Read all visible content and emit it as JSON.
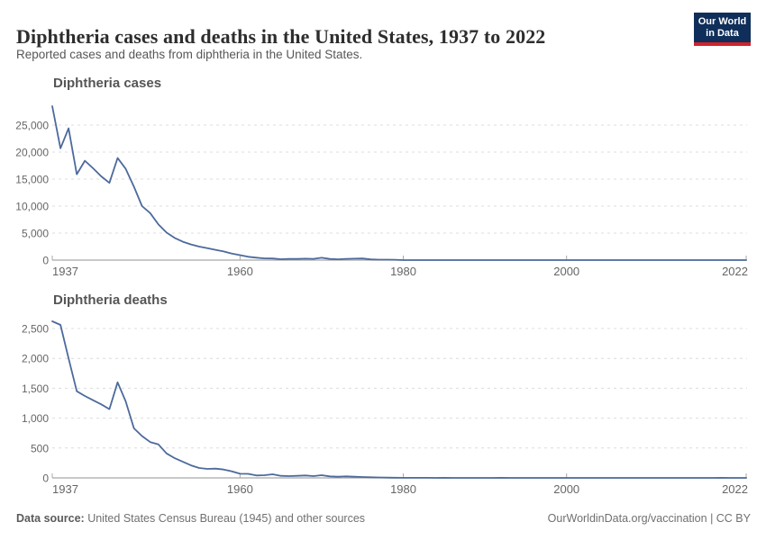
{
  "header": {
    "title": "Diphtheria cases and deaths in the United States, 1937 to 2022",
    "subtitle": "Reported cases and deaths from diphtheria in the United States.",
    "logo": {
      "line1": "Our World",
      "line2": "in Data",
      "bg_color": "#0f2e5a",
      "accent_color": "#d0232a"
    }
  },
  "footer": {
    "source_label": "Data source:",
    "source_text": " United States Census Bureau (1945) and other sources",
    "credit": "OurWorldinData.org/vaccination | CC BY"
  },
  "colors": {
    "line": "#4C6A9C",
    "gridline": "#dcdcdc",
    "axis": "#a8a8a8",
    "tick_label": "#666666"
  },
  "chart_data": [
    {
      "type": "line",
      "title": "Diphtheria cases",
      "xlabel": "",
      "ylabel": "",
      "xlim": [
        1937,
        2022
      ],
      "ylim": [
        0,
        29500
      ],
      "yticks": [
        0,
        5000,
        10000,
        15000,
        20000,
        25000
      ],
      "ytick_labels": [
        "0",
        "5,000",
        "10,000",
        "15,000",
        "20,000",
        "25,000"
      ],
      "xticks": [
        1937,
        1960,
        1980,
        2000,
        2022
      ],
      "xtick_labels": [
        "1937",
        "1960",
        "1980",
        "2000",
        "2022"
      ],
      "grid": "horizontal-dashed",
      "legend": "none",
      "x": [
        1937,
        1938,
        1939,
        1940,
        1941,
        1942,
        1943,
        1944,
        1945,
        1946,
        1947,
        1948,
        1949,
        1950,
        1951,
        1952,
        1953,
        1954,
        1955,
        1956,
        1957,
        1958,
        1959,
        1960,
        1961,
        1962,
        1963,
        1964,
        1965,
        1966,
        1967,
        1968,
        1969,
        1970,
        1971,
        1972,
        1973,
        1974,
        1975,
        1976,
        1977,
        1978,
        1979,
        1980,
        1981,
        1982,
        1983,
        1984,
        1985,
        1986,
        1987,
        1988,
        1989,
        1990,
        1991,
        1992,
        1993,
        1994,
        1995,
        1996,
        1997,
        1998,
        1999,
        2000,
        2001,
        2002,
        2003,
        2004,
        2005,
        2006,
        2007,
        2008,
        2009,
        2010,
        2011,
        2012,
        2013,
        2014,
        2015,
        2016,
        2017,
        2018,
        2019,
        2020,
        2021,
        2022
      ],
      "values": [
        28500,
        20700,
        24400,
        15900,
        18400,
        17000,
        15500,
        14300,
        18900,
        16900,
        13600,
        10000,
        8700,
        6600,
        5100,
        4100,
        3400,
        2900,
        2500,
        2200,
        1900,
        1600,
        1200,
        918,
        617,
        444,
        314,
        293,
        164,
        209,
        219,
        260,
        241,
        435,
        215,
        152,
        228,
        272,
        307,
        128,
        84,
        76,
        59,
        3,
        5,
        2,
        5,
        1,
        3,
        0,
        3,
        2,
        3,
        4,
        2,
        4,
        0,
        2,
        0,
        2,
        4,
        1,
        1,
        1,
        2,
        1,
        1,
        0,
        0,
        0,
        0,
        0,
        0,
        0,
        0,
        1,
        0,
        1,
        0,
        0,
        0,
        1,
        2,
        1,
        0,
        1
      ]
    },
    {
      "type": "line",
      "title": "Diphtheria deaths",
      "xlabel": "",
      "ylabel": "",
      "xlim": [
        1937,
        2022
      ],
      "ylim": [
        0,
        2750
      ],
      "yticks": [
        0,
        500,
        1000,
        1500,
        2000,
        2500
      ],
      "ytick_labels": [
        "0",
        "500",
        "1,000",
        "1,500",
        "2,000",
        "2,500"
      ],
      "xticks": [
        1937,
        1960,
        1980,
        2000,
        2022
      ],
      "xtick_labels": [
        "1937",
        "1960",
        "1980",
        "2000",
        "2022"
      ],
      "grid": "horizontal-dashed",
      "legend": "none",
      "x": [
        1937,
        1938,
        1939,
        1940,
        1941,
        1942,
        1943,
        1944,
        1945,
        1946,
        1947,
        1948,
        1949,
        1950,
        1951,
        1952,
        1953,
        1954,
        1955,
        1956,
        1957,
        1958,
        1959,
        1960,
        1961,
        1962,
        1963,
        1964,
        1965,
        1966,
        1967,
        1968,
        1969,
        1970,
        1971,
        1972,
        1973,
        1974,
        1975,
        1976,
        1977,
        1978,
        1979,
        1980,
        1981,
        1982,
        1983,
        1984,
        1985,
        1986,
        1987,
        1988,
        1989,
        1990,
        1991,
        1992,
        1993,
        1994,
        1995,
        1996,
        1997,
        1998,
        1999,
        2000,
        2001,
        2002,
        2003,
        2004,
        2005,
        2006,
        2007,
        2008,
        2009,
        2010,
        2011,
        2012,
        2013,
        2014,
        2015,
        2016,
        2017,
        2018,
        2019,
        2020,
        2021,
        2022
      ],
      "values": [
        2620,
        2560,
        2000,
        1450,
        1370,
        1300,
        1230,
        1150,
        1600,
        1280,
        830,
        700,
        600,
        560,
        410,
        330,
        270,
        210,
        165,
        150,
        155,
        140,
        110,
        70,
        68,
        41,
        45,
        60,
        35,
        30,
        35,
        40,
        30,
        45,
        25,
        20,
        25,
        20,
        15,
        10,
        8,
        5,
        3,
        2,
        1,
        1,
        1,
        0,
        1,
        0,
        0,
        0,
        0,
        0,
        0,
        1,
        0,
        0,
        0,
        0,
        0,
        0,
        0,
        0,
        0,
        0,
        0,
        0,
        0,
        0,
        0,
        0,
        0,
        0,
        0,
        0,
        0,
        0,
        0,
        0,
        0,
        0,
        1,
        0,
        0,
        0
      ]
    }
  ]
}
